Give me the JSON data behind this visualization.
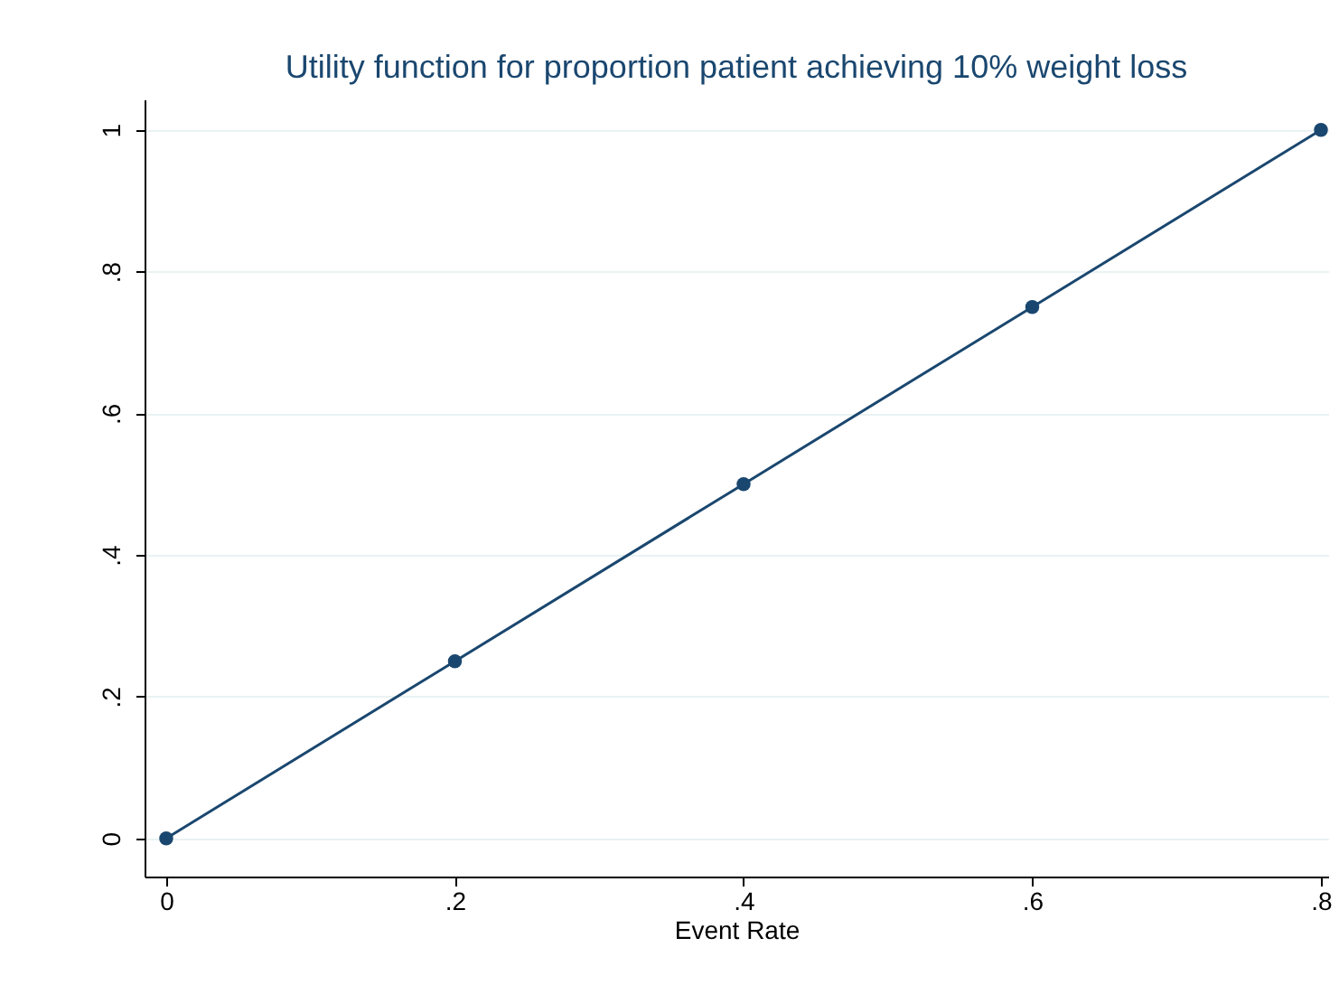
{
  "chart_data": {
    "type": "line",
    "title": "Utility function for proportion patient achieving 10% weight loss",
    "xlabel": "Event Rate",
    "x": [
      0,
      0.2,
      0.4,
      0.6,
      0.8
    ],
    "series": [
      {
        "color": "#1a476f",
        "values": [
          0,
          0.25,
          0.5,
          0.75,
          1
        ]
      }
    ],
    "xlim": [
      -0.015,
      0.805
    ],
    "ylim": [
      -0.054,
      1.043
    ],
    "xticks": [
      0,
      {
        "value": 0.2,
        "label": ".2"
      },
      {
        "value": 0.4,
        "label": ".4"
      },
      {
        "value": 0.6,
        "label": ".6"
      },
      {
        "value": 0.8,
        "label": ".8"
      }
    ],
    "yticks": [
      0,
      {
        "value": 0.2,
        "label": ".2"
      },
      {
        "value": 0.4,
        "label": ".4"
      },
      {
        "value": 0.6,
        "label": ".6"
      },
      {
        "value": 0.8,
        "label": ".8"
      },
      1
    ],
    "grid": "y",
    "marker": "circle",
    "line_style": "solid"
  }
}
